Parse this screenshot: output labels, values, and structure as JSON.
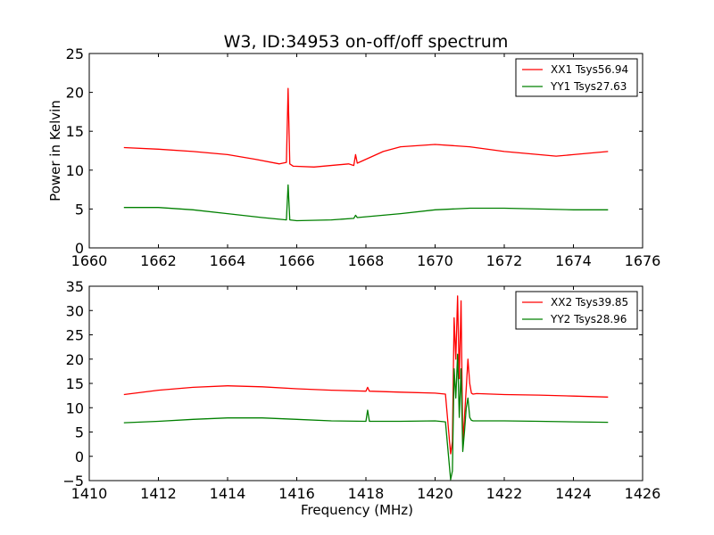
{
  "figure": {
    "title": "W3, ID:34953 on-off/off spectrum"
  },
  "chart_data": [
    {
      "type": "line",
      "title": "W3, ID:34953 on-off/off spectrum",
      "xlabel": "",
      "ylabel": "Power in Kelvin",
      "xlim": [
        1660,
        1676
      ],
      "ylim": [
        0,
        25
      ],
      "xticks": [
        "1660",
        "1662",
        "1664",
        "1666",
        "1668",
        "1670",
        "1672",
        "1674",
        "1676"
      ],
      "yticks": [
        "0",
        "5",
        "10",
        "15",
        "20",
        "25"
      ],
      "legend_position": "top-right",
      "grid": false,
      "series": [
        {
          "name": "XX1 Tsys56.94",
          "color": "#ff0000",
          "x": [
            1661.0,
            1662.0,
            1663.0,
            1664.0,
            1664.8,
            1665.5,
            1665.7,
            1665.75,
            1665.8,
            1665.9,
            1666.5,
            1667.5,
            1667.65,
            1667.7,
            1667.75,
            1668.0,
            1668.5,
            1669.0,
            1670.0,
            1671.0,
            1672.0,
            1673.0,
            1673.5,
            1674.0,
            1675.0
          ],
          "y": [
            12.9,
            12.7,
            12.4,
            12.0,
            11.4,
            10.8,
            11.0,
            20.5,
            10.8,
            10.5,
            10.4,
            10.8,
            10.6,
            12.0,
            10.9,
            11.4,
            12.4,
            13.0,
            13.3,
            13.0,
            12.4,
            12.0,
            11.8,
            12.0,
            12.4
          ]
        },
        {
          "name": "YY1 Tsys27.63",
          "color": "#008000",
          "x": [
            1661.0,
            1662.0,
            1663.0,
            1664.0,
            1665.0,
            1665.7,
            1665.75,
            1665.8,
            1666.0,
            1667.0,
            1667.65,
            1667.7,
            1667.75,
            1668.0,
            1669.0,
            1670.0,
            1671.0,
            1672.0,
            1673.0,
            1674.0,
            1675.0
          ],
          "y": [
            5.2,
            5.2,
            4.9,
            4.4,
            3.9,
            3.6,
            8.1,
            3.6,
            3.5,
            3.6,
            3.8,
            4.2,
            3.9,
            4.0,
            4.4,
            4.9,
            5.1,
            5.1,
            5.0,
            4.9,
            4.9
          ]
        }
      ]
    },
    {
      "type": "line",
      "title": "",
      "xlabel": "Frequency (MHz)",
      "ylabel": "",
      "xlim": [
        1410,
        1426
      ],
      "ylim": [
        -5,
        35
      ],
      "xticks": [
        "1410",
        "1412",
        "1414",
        "1416",
        "1418",
        "1420",
        "1422",
        "1424",
        "1426"
      ],
      "yticks": [
        "−5",
        "0",
        "5",
        "10",
        "15",
        "20",
        "25",
        "30",
        "35"
      ],
      "legend_position": "top-right",
      "grid": false,
      "series": [
        {
          "name": "XX2 Tsys39.85",
          "color": "#ff0000",
          "x": [
            1411.0,
            1412.0,
            1413.0,
            1414.0,
            1415.0,
            1416.0,
            1417.0,
            1418.0,
            1418.05,
            1418.1,
            1419.0,
            1420.0,
            1420.3,
            1420.45,
            1420.5,
            1420.55,
            1420.6,
            1420.65,
            1420.7,
            1420.75,
            1420.8,
            1420.85,
            1420.9,
            1420.95,
            1421.0,
            1421.05,
            1421.1,
            1421.2,
            1422.0,
            1423.0,
            1424.0,
            1425.0
          ],
          "y": [
            12.7,
            13.6,
            14.2,
            14.5,
            14.3,
            13.9,
            13.6,
            13.4,
            14.2,
            13.4,
            13.2,
            13.0,
            12.8,
            0.5,
            3.0,
            28.5,
            20.0,
            33.0,
            16.0,
            32.0,
            3.0,
            8.0,
            14.0,
            20.0,
            15.0,
            13.0,
            12.8,
            12.9,
            12.7,
            12.6,
            12.4,
            12.2
          ]
        },
        {
          "name": "YY2 Tsys28.96",
          "color": "#008000",
          "x": [
            1411.0,
            1412.0,
            1413.0,
            1414.0,
            1415.0,
            1416.0,
            1417.0,
            1418.0,
            1418.05,
            1418.1,
            1419.0,
            1420.0,
            1420.3,
            1420.45,
            1420.5,
            1420.55,
            1420.6,
            1420.65,
            1420.7,
            1420.75,
            1420.8,
            1420.85,
            1420.9,
            1420.95,
            1421.0,
            1421.05,
            1421.1,
            1421.2,
            1422.0,
            1423.0,
            1424.0,
            1425.0
          ],
          "y": [
            6.9,
            7.2,
            7.6,
            7.9,
            7.9,
            7.6,
            7.3,
            7.2,
            9.5,
            7.2,
            7.2,
            7.3,
            7.1,
            -4.8,
            -3.0,
            18.0,
            12.0,
            21.0,
            8.0,
            18.0,
            1.0,
            5.0,
            10.0,
            12.0,
            8.0,
            7.4,
            7.3,
            7.3,
            7.3,
            7.2,
            7.1,
            7.0
          ]
        }
      ]
    }
  ]
}
